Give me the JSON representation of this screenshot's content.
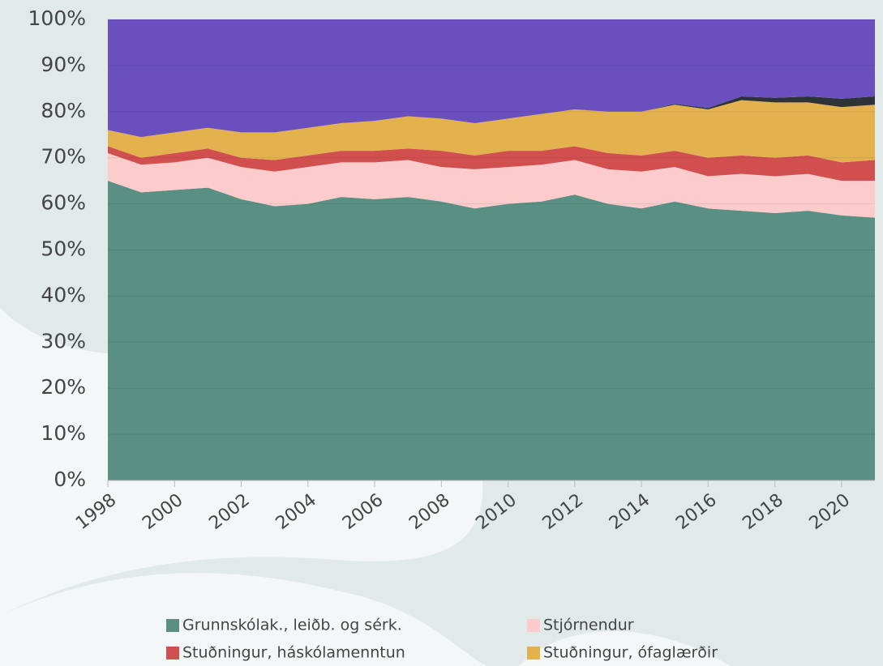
{
  "chart_data": {
    "type": "stacked-area",
    "x": [
      1998,
      1999,
      2000,
      2001,
      2002,
      2003,
      2004,
      2005,
      2006,
      2007,
      2008,
      2009,
      2010,
      2011,
      2012,
      2013,
      2014,
      2015,
      2016,
      2017,
      2018,
      2019,
      2020,
      2021
    ],
    "xlim": [
      1998,
      2021
    ],
    "xticks": [
      1998,
      2000,
      2002,
      2004,
      2006,
      2008,
      2010,
      2012,
      2014,
      2016,
      2018,
      2020
    ],
    "ylim": [
      0,
      100
    ],
    "yticks": [
      {
        "value": 0,
        "label": "0%"
      },
      {
        "value": 10,
        "label": "10%"
      },
      {
        "value": 20,
        "label": "20%"
      },
      {
        "value": 30,
        "label": "30%"
      },
      {
        "value": 40,
        "label": "40%"
      },
      {
        "value": 50,
        "label": "50%"
      },
      {
        "value": 60,
        "label": "60%"
      },
      {
        "value": 70,
        "label": "70%"
      },
      {
        "value": 80,
        "label": "80%"
      },
      {
        "value": 90,
        "label": "90%"
      },
      {
        "value": 100,
        "label": "100%"
      }
    ],
    "grid": true,
    "series": [
      {
        "name": "Grunnskólak., leiðb. og sérk.",
        "color": "#5a8f84",
        "values": [
          65,
          62.5,
          63,
          63.5,
          61,
          59.5,
          60,
          61.5,
          61,
          61.5,
          60.5,
          59,
          60,
          60.5,
          62,
          60,
          59,
          60.5,
          59,
          58.5,
          58,
          58.5,
          57.5,
          57
        ]
      },
      {
        "name": "Stjórnendur",
        "color": "#fccccc",
        "values": [
          6,
          6,
          6,
          6.5,
          7,
          7.5,
          8,
          7.5,
          8,
          8,
          7.5,
          8.5,
          8,
          8,
          7.5,
          7.5,
          8,
          7.5,
          7,
          8,
          8,
          8,
          7.5,
          8
        ]
      },
      {
        "name": "Stuðningur, háskólamenntun",
        "color": "#d24f4f",
        "values": [
          1.5,
          1.5,
          2,
          2,
          2,
          2.5,
          2.5,
          2.5,
          2.5,
          2.5,
          3.5,
          3,
          3.5,
          3,
          3,
          3.5,
          3.5,
          3.5,
          4,
          4,
          4,
          4,
          4,
          4.5
        ]
      },
      {
        "name": "Stuðningur, ófaglærðir",
        "color": "#e3b24f",
        "values": [
          3.5,
          4.5,
          4.5,
          4.5,
          5.5,
          6,
          6,
          6,
          6.5,
          7,
          7,
          7,
          7,
          8,
          8,
          9,
          9.5,
          10,
          10.5,
          12,
          12,
          11.5,
          12,
          12
        ]
      },
      {
        "color": "#2e3338",
        "values": [
          0,
          0,
          0,
          0,
          0,
          0,
          0,
          0,
          0,
          0,
          0,
          0,
          0,
          0,
          0,
          0,
          0,
          0.2,
          0.3,
          0.8,
          1,
          1.3,
          1.8,
          1.8
        ]
      },
      {
        "color": "#6a50bf",
        "values": [
          24,
          25.5,
          24.5,
          23.5,
          24.5,
          24.5,
          23.5,
          22.5,
          22,
          21,
          21.5,
          22.5,
          21.5,
          20.5,
          19.5,
          20,
          20,
          18.3,
          19.2,
          16.7,
          17,
          16.7,
          17.2,
          16.7
        ]
      }
    ]
  }
}
